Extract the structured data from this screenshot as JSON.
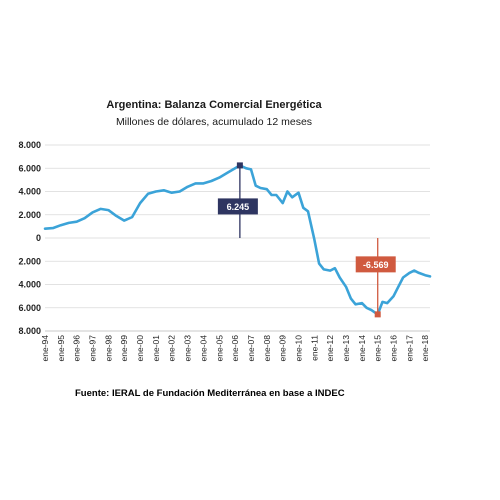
{
  "chart_data": {
    "type": "line",
    "title": "Argentina: Balanza Comercial Energética",
    "subtitle": "Millones de dólares, acumulado 12 meses",
    "source": "Fuente: IERAL de Fundación Mediterránea en base a INDEC",
    "ylim": [
      -8000,
      8000
    ],
    "y_ticks": [
      8000,
      6000,
      4000,
      2000,
      0,
      -2000,
      -4000,
      -6000,
      -8000
    ],
    "y_tick_labels": [
      "8.000",
      "6.000",
      "4.000",
      "2.000",
      "0",
      "2.000",
      "4.000",
      "6.000",
      "8.000"
    ],
    "x_tick_labels": [
      "ene-94",
      "ene-95",
      "ene-96",
      "ene-97",
      "ene-98",
      "ene-99",
      "ene-00",
      "ene-01",
      "ene-02",
      "ene-03",
      "ene-04",
      "ene-05",
      "ene-06",
      "ene-07",
      "ene-08",
      "ene-09",
      "ene-10",
      "ene-11",
      "ene-12",
      "ene-13",
      "ene-14",
      "ene-15",
      "ene-16",
      "ene-17",
      "ene-18"
    ],
    "grid": "horizontal",
    "color": "#3ba3d8",
    "series": [
      {
        "x": [
          1994.0,
          1994.5,
          1995.0,
          1995.5,
          1996.0,
          1996.5,
          1997.0,
          1997.5,
          1998.0,
          1998.5,
          1999.0,
          1999.5,
          2000.0,
          2000.5,
          2001.0,
          2001.5,
          2002.0,
          2002.5,
          2003.0,
          2003.5,
          2004.0,
          2004.5,
          2005.0,
          2005.5,
          2006.0,
          2006.3,
          2006.7,
          2007.0,
          2007.3,
          2007.6,
          2008.0,
          2008.3,
          2008.6,
          2009.0,
          2009.3,
          2009.6,
          2010.0,
          2010.3,
          2010.6,
          2011.0,
          2011.3,
          2011.6,
          2012.0,
          2012.3,
          2012.6,
          2013.0,
          2013.3,
          2013.6,
          2014.0,
          2014.3,
          2014.6,
          2015.0,
          2015.3,
          2015.6,
          2016.0,
          2016.3,
          2016.6,
          2017.0,
          2017.3,
          2017.6,
          2018.0,
          2018.3
        ],
        "y": [
          800,
          850,
          1100,
          1300,
          1400,
          1700,
          2200,
          2500,
          2400,
          1900,
          1500,
          1800,
          3000,
          3800,
          4000,
          4100,
          3900,
          4000,
          4400,
          4700,
          4700,
          4900,
          5200,
          5600,
          6000,
          6245,
          6000,
          5900,
          4500,
          4300,
          4200,
          3700,
          3700,
          3000,
          4000,
          3500,
          3900,
          2600,
          2300,
          -100,
          -2200,
          -2700,
          -2800,
          -2600,
          -3400,
          -4200,
          -5200,
          -5700,
          -5600,
          -6000,
          -6200,
          -6569,
          -5500,
          -5600,
          -5000,
          -4200,
          -3400,
          -3000,
          -2800,
          -3000,
          -3200,
          -3300
        ]
      }
    ],
    "annotations": [
      {
        "x": 2006.3,
        "y": 6245,
        "label": "6.245",
        "fill": "#2e3561"
      },
      {
        "x": 2015.0,
        "y": -6569,
        "label": "-6.569",
        "fill": "#d05a3f"
      }
    ]
  }
}
